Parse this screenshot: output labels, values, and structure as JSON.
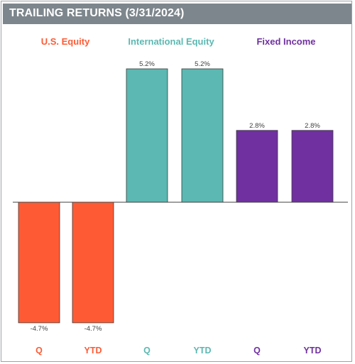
{
  "title": "TRAILING RETURNS (3/31/2024)",
  "chart_data": {
    "type": "bar",
    "groups": [
      {
        "name": "U.S. Equity",
        "color": "#fe5b35"
      },
      {
        "name": "International Equity",
        "color": "#5bb8b2"
      },
      {
        "name": "Fixed Income",
        "color": "#7030a0"
      }
    ],
    "categories": [
      "Q",
      "YTD",
      "Q",
      "YTD",
      "Q",
      "YTD"
    ],
    "values": [
      -4.7,
      -4.7,
      5.2,
      5.2,
      2.8,
      2.8
    ],
    "value_labels": [
      "-4.7%",
      "-4.7%",
      "5.2%",
      "5.2%",
      "2.8%",
      "2.8%"
    ],
    "bar_colors": [
      "#fe5b35",
      "#fe5b35",
      "#5bb8b2",
      "#5bb8b2",
      "#7030a0",
      "#7030a0"
    ],
    "ylim": [
      -4.7,
      5.2
    ],
    "grid": false,
    "xlabel": "",
    "ylabel": ""
  }
}
